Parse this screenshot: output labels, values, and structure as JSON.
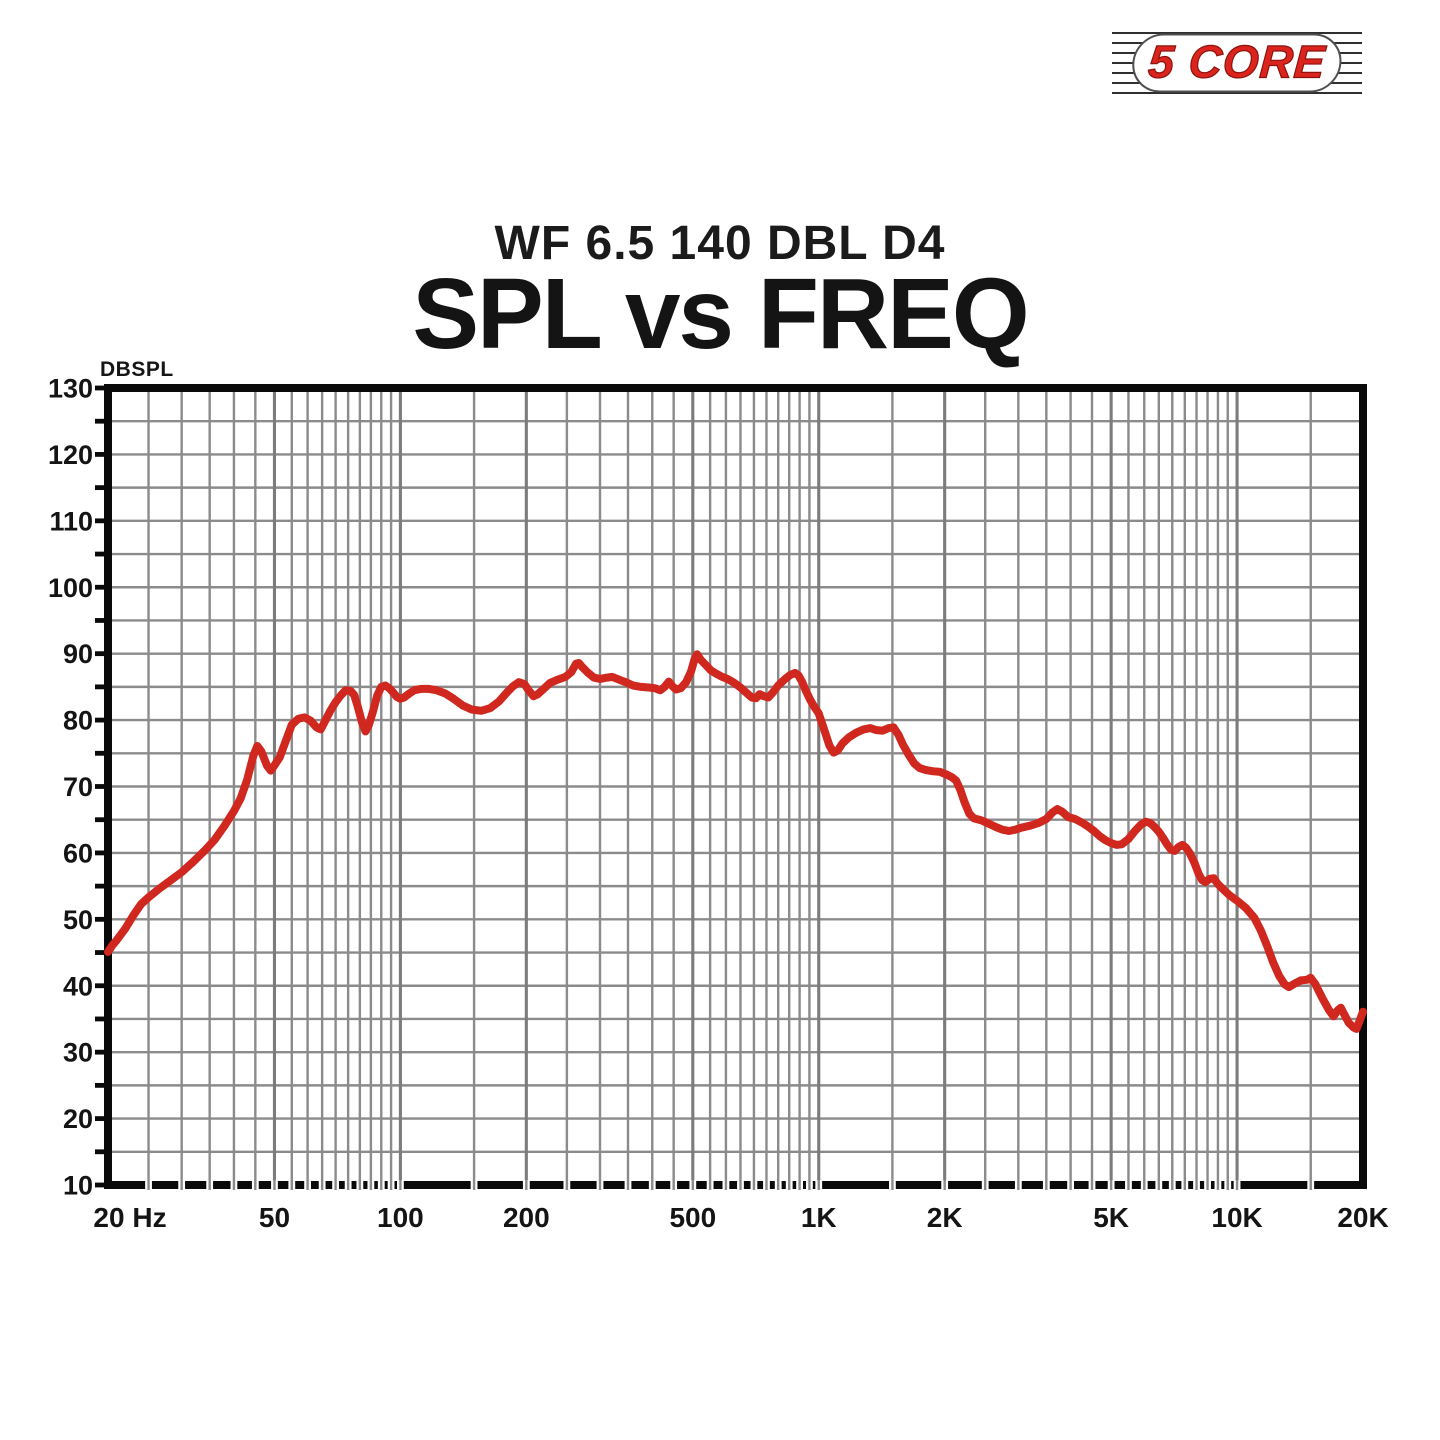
{
  "page": {
    "background": "#ffffff"
  },
  "logo": {
    "text": "5 CORE",
    "color": "#da241d"
  },
  "header": {
    "subtitle": "WF 6.5 140 DBL D4",
    "title": "SPL vs FREQ"
  },
  "chart_data": {
    "type": "line",
    "title": "SPL vs FREQ",
    "subtitle": "WF 6.5 140 DBL D4",
    "grid": true,
    "legend": "none",
    "colors": {
      "curve": "#d0271f",
      "grid": "#8b8b8b",
      "grid_major": "#7c7c7c",
      "axis": "#0a0a0a",
      "label": "#141414"
    },
    "x_axis": {
      "scale": "log",
      "min": 20,
      "max": 20000,
      "unit": "Hz",
      "minor_step_mantissa": 0.5,
      "ticks": [
        {
          "f": 20,
          "label": "20 Hz",
          "dx": 22
        },
        {
          "f": 50,
          "label": "50",
          "dx": 0
        },
        {
          "f": 100,
          "label": "100",
          "dx": 0
        },
        {
          "f": 200,
          "label": "200",
          "dx": 0
        },
        {
          "f": 500,
          "label": "500",
          "dx": 0
        },
        {
          "f": 1000,
          "label": "1K",
          "dx": 0
        },
        {
          "f": 2000,
          "label": "2K",
          "dx": 0
        },
        {
          "f": 5000,
          "label": "5K",
          "dx": 0
        },
        {
          "f": 10000,
          "label": "10K",
          "dx": 0
        },
        {
          "f": 20000,
          "label": "20K",
          "dx": 0
        }
      ]
    },
    "y_axis": {
      "label": "DBSPL",
      "min": 10,
      "max": 130,
      "grid_step": 5,
      "label_step": 10
    },
    "series": [
      {
        "name": "SPL",
        "color": "#d0271f",
        "points": [
          [
            20,
            45.1
          ],
          [
            20.5,
            46.1
          ],
          [
            21,
            46.9
          ],
          [
            22,
            48.6
          ],
          [
            23,
            50.6
          ],
          [
            24,
            52.3
          ],
          [
            25,
            53.3
          ],
          [
            26.5,
            54.6
          ],
          [
            28,
            55.7
          ],
          [
            30,
            57.1
          ],
          [
            32,
            58.7
          ],
          [
            34,
            60.3
          ],
          [
            36,
            62
          ],
          [
            38,
            64.1
          ],
          [
            40,
            66.3
          ],
          [
            41.5,
            68.2
          ],
          [
            43,
            71
          ],
          [
            44.5,
            74.6
          ],
          [
            45.5,
            76.1
          ],
          [
            46.5,
            75.3
          ],
          [
            48,
            73.1
          ],
          [
            49,
            72.4
          ],
          [
            50,
            73.2
          ],
          [
            51.5,
            74.4
          ],
          [
            53,
            76.6
          ],
          [
            55,
            79.3
          ],
          [
            57,
            80.2
          ],
          [
            59,
            80.4
          ],
          [
            61,
            79.9
          ],
          [
            63,
            78.9
          ],
          [
            64.5,
            78.6
          ],
          [
            66,
            79.8
          ],
          [
            68,
            81.4
          ],
          [
            70,
            82.7
          ],
          [
            72,
            83.7
          ],
          [
            74,
            84.5
          ],
          [
            76,
            84.4
          ],
          [
            77.5,
            83.8
          ],
          [
            79,
            82.1
          ],
          [
            81,
            79.6
          ],
          [
            82.5,
            78.3
          ],
          [
            84,
            79.2
          ],
          [
            86,
            81.3
          ],
          [
            88,
            83.7
          ],
          [
            90,
            85
          ],
          [
            92,
            85.2
          ],
          [
            94,
            84.8
          ],
          [
            96,
            84.2
          ],
          [
            98,
            83.5
          ],
          [
            100,
            83.2
          ],
          [
            102,
            83.4
          ],
          [
            105,
            84
          ],
          [
            108,
            84.5
          ],
          [
            112,
            84.7
          ],
          [
            117,
            84.7
          ],
          [
            122,
            84.5
          ],
          [
            128,
            84
          ],
          [
            134,
            83.2
          ],
          [
            141,
            82.2
          ],
          [
            148,
            81.6
          ],
          [
            156,
            81.4
          ],
          [
            164,
            81.8
          ],
          [
            172,
            82.8
          ],
          [
            180,
            84.2
          ],
          [
            186,
            85.1
          ],
          [
            192,
            85.7
          ],
          [
            198,
            85.4
          ],
          [
            203,
            84.4
          ],
          [
            208,
            83.6
          ],
          [
            213,
            83.9
          ],
          [
            220,
            84.7
          ],
          [
            228,
            85.6
          ],
          [
            238,
            86.1
          ],
          [
            248,
            86.5
          ],
          [
            256,
            87.2
          ],
          [
            263,
            88.5
          ],
          [
            267,
            88.6
          ],
          [
            272,
            88
          ],
          [
            280,
            87.2
          ],
          [
            290,
            86.4
          ],
          [
            300,
            86.2
          ],
          [
            312,
            86.4
          ],
          [
            321,
            86.5
          ],
          [
            333,
            86.1
          ],
          [
            346,
            85.7
          ],
          [
            360,
            85.2
          ],
          [
            376,
            85
          ],
          [
            392,
            84.9
          ],
          [
            406,
            84.8
          ],
          [
            418,
            84.5
          ],
          [
            428,
            85
          ],
          [
            438,
            85.8
          ],
          [
            447,
            85.1
          ],
          [
            456,
            84.6
          ],
          [
            468,
            84.8
          ],
          [
            482,
            85.7
          ],
          [
            495,
            87.3
          ],
          [
            505,
            89.2
          ],
          [
            512,
            89.9
          ],
          [
            522,
            89.1
          ],
          [
            537,
            88.3
          ],
          [
            552,
            87.5
          ],
          [
            568,
            87
          ],
          [
            588,
            86.5
          ],
          [
            605,
            86.2
          ],
          [
            625,
            85.7
          ],
          [
            650,
            84.9
          ],
          [
            672,
            84.1
          ],
          [
            692,
            83.4
          ],
          [
            708,
            83.3
          ],
          [
            722,
            83.9
          ],
          [
            740,
            83.6
          ],
          [
            758,
            83.4
          ],
          [
            778,
            84.2
          ],
          [
            800,
            85.2
          ],
          [
            828,
            86.1
          ],
          [
            855,
            86.8
          ],
          [
            878,
            87.1
          ],
          [
            895,
            86.7
          ],
          [
            912,
            85.8
          ],
          [
            932,
            84.4
          ],
          [
            955,
            83
          ],
          [
            978,
            81.9
          ],
          [
            1000,
            81
          ],
          [
            1030,
            78.6
          ],
          [
            1060,
            76.2
          ],
          [
            1085,
            75.1
          ],
          [
            1110,
            75.4
          ],
          [
            1140,
            76.5
          ],
          [
            1180,
            77.4
          ],
          [
            1230,
            78.1
          ],
          [
            1280,
            78.6
          ],
          [
            1330,
            78.8
          ],
          [
            1370,
            78.5
          ],
          [
            1420,
            78.4
          ],
          [
            1470,
            78.8
          ],
          [
            1510,
            78.9
          ],
          [
            1550,
            77.8
          ],
          [
            1590,
            76.3
          ],
          [
            1640,
            74.8
          ],
          [
            1690,
            73.5
          ],
          [
            1740,
            72.8
          ],
          [
            1800,
            72.5
          ],
          [
            1870,
            72.3
          ],
          [
            1950,
            72.2
          ],
          [
            2020,
            71.8
          ],
          [
            2080,
            71.4
          ],
          [
            2130,
            70.9
          ],
          [
            2180,
            69.5
          ],
          [
            2230,
            67.7
          ],
          [
            2290,
            65.9
          ],
          [
            2350,
            65.2
          ],
          [
            2450,
            64.9
          ],
          [
            2550,
            64.4
          ],
          [
            2650,
            63.9
          ],
          [
            2750,
            63.5
          ],
          [
            2850,
            63.3
          ],
          [
            2950,
            63.5
          ],
          [
            3050,
            63.8
          ],
          [
            3200,
            64.1
          ],
          [
            3350,
            64.5
          ],
          [
            3500,
            65.1
          ],
          [
            3620,
            66.1
          ],
          [
            3720,
            66.6
          ],
          [
            3820,
            66.2
          ],
          [
            3950,
            65.4
          ],
          [
            4100,
            65.1
          ],
          [
            4250,
            64.6
          ],
          [
            4400,
            64
          ],
          [
            4550,
            63.3
          ],
          [
            4700,
            62.5
          ],
          [
            4850,
            61.9
          ],
          [
            5000,
            61.5
          ],
          [
            5150,
            61.2
          ],
          [
            5300,
            61.3
          ],
          [
            5500,
            62.1
          ],
          [
            5700,
            63.3
          ],
          [
            5900,
            64.3
          ],
          [
            6050,
            64.7
          ],
          [
            6200,
            64.5
          ],
          [
            6350,
            63.9
          ],
          [
            6500,
            63.2
          ],
          [
            6650,
            62.3
          ],
          [
            6800,
            61.3
          ],
          [
            6950,
            60.5
          ],
          [
            7100,
            60.3
          ],
          [
            7250,
            60.9
          ],
          [
            7400,
            61.2
          ],
          [
            7550,
            60.8
          ],
          [
            7700,
            60
          ],
          [
            7900,
            58.6
          ],
          [
            8100,
            56.8
          ],
          [
            8250,
            55.9
          ],
          [
            8400,
            55.6
          ],
          [
            8600,
            56.1
          ],
          [
            8800,
            56.2
          ],
          [
            9000,
            55.3
          ],
          [
            9300,
            54.4
          ],
          [
            9600,
            53.6
          ],
          [
            10000,
            52.8
          ],
          [
            10500,
            51.7
          ],
          [
            11000,
            50.2
          ],
          [
            11400,
            48.3
          ],
          [
            11800,
            46
          ],
          [
            12200,
            43.5
          ],
          [
            12600,
            41.5
          ],
          [
            13000,
            40.2
          ],
          [
            13300,
            39.8
          ],
          [
            13700,
            40.3
          ],
          [
            14200,
            40.8
          ],
          [
            14700,
            40.9
          ],
          [
            15000,
            41.2
          ],
          [
            15400,
            40.2
          ],
          [
            16000,
            38.1
          ],
          [
            16600,
            36.3
          ],
          [
            17000,
            35.4
          ],
          [
            17400,
            36.3
          ],
          [
            17700,
            36.7
          ],
          [
            18100,
            35.5
          ],
          [
            18500,
            34.4
          ],
          [
            19000,
            33.7
          ],
          [
            19300,
            33.5
          ],
          [
            19650,
            34.8
          ],
          [
            20000,
            36.1
          ]
        ]
      }
    ]
  }
}
